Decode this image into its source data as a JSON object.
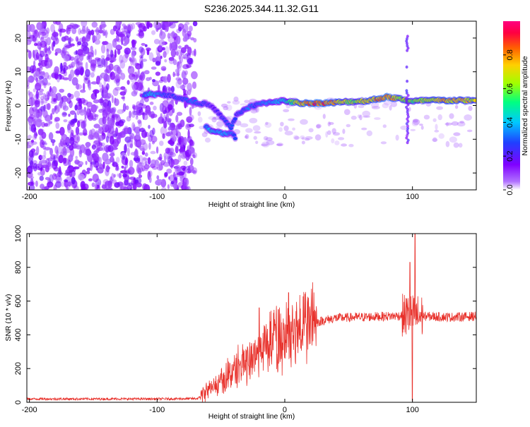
{
  "figure": {
    "title": "S236.2025.344.11.32.G11"
  },
  "colors": {
    "spectro_noise": "#9a5cf0",
    "spectro_strong": "#5a00d8",
    "snr_line": "#e8302a",
    "colorbar_stops": [
      "#7f00ff",
      "#2040ff",
      "#00c8ff",
      "#00ff80",
      "#a0ff00",
      "#ffd000",
      "#ff6000",
      "#ff0040",
      "#ff0080"
    ]
  },
  "chart_data": [
    {
      "type": "heatmap",
      "title": "S236.2025.344.11.32.G11",
      "xlabel": "Height of straight line (km)",
      "ylabel": "Frequency (Hz)",
      "xlim": [
        -202,
        150
      ],
      "ylim": [
        -25,
        25
      ],
      "xticks": [
        "-200",
        "-100",
        "0",
        "100"
      ],
      "xtick_values": [
        -200,
        -100,
        0,
        100
      ],
      "yticks": [
        "20",
        "10",
        "0",
        "-10",
        "-20"
      ],
      "ytick_values": [
        20,
        10,
        0,
        -10,
        -20
      ],
      "colorbar": {
        "label": "Normalized spectral amplitude",
        "ticks": [
          "0.0",
          "0.2",
          "0.4",
          "0.6",
          "0.8"
        ],
        "tick_values": [
          0.0,
          0.2,
          0.4,
          0.6,
          0.8
        ],
        "range": [
          0,
          1
        ]
      },
      "noise_region_x": [
        -202,
        -70
      ],
      "signal_trace": [
        {
          "x": -110,
          "y": 3.2,
          "amp": 0.35
        },
        {
          "x": -105,
          "y": 3.5,
          "amp": 0.45
        },
        {
          "x": -90,
          "y": 3.0,
          "amp": 0.25
        },
        {
          "x": -78,
          "y": 1.8,
          "amp": 0.3
        },
        {
          "x": -72,
          "y": 1.0,
          "amp": 0.35
        },
        {
          "x": -62,
          "y": 0.5,
          "amp": 0.25
        },
        {
          "x": -55,
          "y": -1.0,
          "amp": 0.2
        },
        {
          "x": -48,
          "y": -4.0,
          "amp": 0.25
        },
        {
          "x": -42,
          "y": -6.5,
          "amp": 0.3
        },
        {
          "x": -38,
          "y": -3.0,
          "amp": 0.25
        },
        {
          "x": -33,
          "y": -1.5,
          "amp": 0.3
        },
        {
          "x": -28,
          "y": -0.5,
          "amp": 0.35
        },
        {
          "x": -22,
          "y": 0.2,
          "amp": 0.3
        },
        {
          "x": -15,
          "y": 0.8,
          "amp": 0.35
        },
        {
          "x": -8,
          "y": 1.2,
          "amp": 0.4
        },
        {
          "x": 0,
          "y": 1.4,
          "amp": 0.45
        },
        {
          "x": 5,
          "y": 1.0,
          "amp": 0.55
        },
        {
          "x": 12,
          "y": 0.7,
          "amp": 0.8
        },
        {
          "x": 25,
          "y": 0.7,
          "amp": 0.9
        },
        {
          "x": 35,
          "y": 0.8,
          "amp": 0.85
        },
        {
          "x": 45,
          "y": 1.0,
          "amp": 0.7
        },
        {
          "x": 55,
          "y": 1.2,
          "amp": 0.6
        },
        {
          "x": 65,
          "y": 1.4,
          "amp": 0.75
        },
        {
          "x": 80,
          "y": 2.5,
          "amp": 0.9
        },
        {
          "x": 90,
          "y": 2.0,
          "amp": 0.7
        },
        {
          "x": 100,
          "y": 1.2,
          "amp": 0.6
        },
        {
          "x": 110,
          "y": 1.5,
          "amp": 0.7
        },
        {
          "x": 125,
          "y": 1.5,
          "amp": 0.8
        },
        {
          "x": 140,
          "y": 1.5,
          "amp": 0.75
        },
        {
          "x": 150,
          "y": 1.5,
          "amp": 0.7
        }
      ],
      "lower_branch": [
        {
          "x": -62,
          "y": -6.0,
          "amp": 0.35
        },
        {
          "x": -58,
          "y": -7.5,
          "amp": 0.45
        },
        {
          "x": -52,
          "y": -8.0,
          "amp": 0.4
        },
        {
          "x": -46,
          "y": -8.5,
          "amp": 0.4
        },
        {
          "x": -42,
          "y": -8.0,
          "amp": 0.35
        },
        {
          "x": -38,
          "y": -10.0,
          "amp": 0.25
        }
      ],
      "vertical_feature": {
        "x": 96,
        "y_range": [
          -11,
          21
        ]
      }
    },
    {
      "type": "line",
      "title": "",
      "xlabel": "Height of straight line (km)",
      "ylabel": "SNR (10 * v/v)",
      "xlim": [
        -202,
        150
      ],
      "ylim": [
        0,
        1000
      ],
      "xticks": [
        "-200",
        "-100",
        "0",
        "100"
      ],
      "xtick_values": [
        -200,
        -100,
        0,
        100
      ],
      "yticks": [
        "0",
        "200",
        "400",
        "600",
        "800",
        "1000"
      ],
      "ytick_values": [
        0,
        200,
        400,
        600,
        800,
        1000
      ],
      "trend": [
        {
          "x": -202,
          "y": 20
        },
        {
          "x": -150,
          "y": 20
        },
        {
          "x": -100,
          "y": 20
        },
        {
          "x": -68,
          "y": 22
        },
        {
          "x": -62,
          "y": 60
        },
        {
          "x": -50,
          "y": 110
        },
        {
          "x": -40,
          "y": 180
        },
        {
          "x": -30,
          "y": 230
        },
        {
          "x": -20,
          "y": 290
        },
        {
          "x": -10,
          "y": 340
        },
        {
          "x": 0,
          "y": 380
        },
        {
          "x": 10,
          "y": 420
        },
        {
          "x": 20,
          "y": 460
        },
        {
          "x": 30,
          "y": 485
        },
        {
          "x": 40,
          "y": 500
        },
        {
          "x": 60,
          "y": 505
        },
        {
          "x": 80,
          "y": 510
        },
        {
          "x": 95,
          "y": 515
        },
        {
          "x": 110,
          "y": 510
        },
        {
          "x": 130,
          "y": 505
        },
        {
          "x": 150,
          "y": 510
        }
      ],
      "peaks": [
        {
          "x": -20,
          "y": 560
        },
        {
          "x": -5,
          "y": 550
        },
        {
          "x": 3,
          "y": 650
        },
        {
          "x": 98,
          "y": 830
        },
        {
          "x": 102,
          "y": 1000
        },
        {
          "x": 100,
          "y": 10
        }
      ]
    }
  ]
}
